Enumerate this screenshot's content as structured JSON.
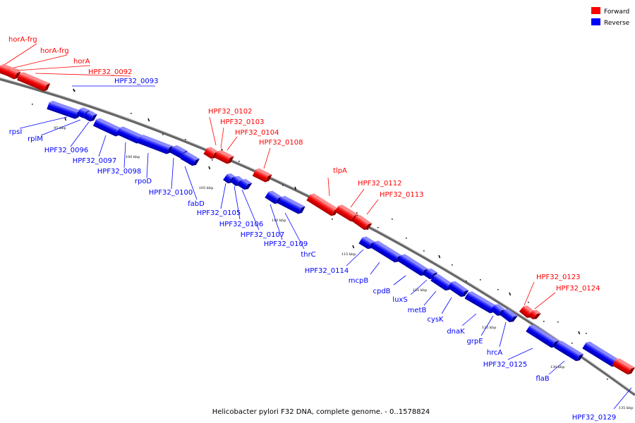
{
  "title": "Helicobacter pylori F32 DNA, complete genome. - 0..1578824",
  "colors": {
    "forward": "#ff0000",
    "reverse": "#0000ff",
    "backbone": "#888888"
  },
  "legend": [
    {
      "key": "forward",
      "label": "Forward"
    },
    {
      "key": "reverse",
      "label": "Reverse"
    }
  ],
  "scale_labels": [
    "95 kbp",
    "100 kbp",
    "105 kbp",
    "110 kbp",
    "115 kbp",
    "120 kbp",
    "125 kbp",
    "130 kbp",
    "135 kbp"
  ],
  "genes": [
    {
      "name": "horA-frg",
      "strand": "forward"
    },
    {
      "name": "horA-frg",
      "strand": "forward"
    },
    {
      "name": "horA",
      "strand": "forward"
    },
    {
      "name": "HPF32_0092",
      "strand": "forward"
    },
    {
      "name": "HPF32_0093",
      "strand": "reverse"
    },
    {
      "name": "rpsI",
      "strand": "reverse"
    },
    {
      "name": "rplM",
      "strand": "reverse"
    },
    {
      "name": "HPF32_0096",
      "strand": "reverse"
    },
    {
      "name": "HPF32_0097",
      "strand": "reverse"
    },
    {
      "name": "HPF32_0098",
      "strand": "reverse"
    },
    {
      "name": "rpoD",
      "strand": "reverse"
    },
    {
      "name": "HPF32_0100",
      "strand": "reverse"
    },
    {
      "name": "fabD",
      "strand": "reverse"
    },
    {
      "name": "HPF32_0102",
      "strand": "forward"
    },
    {
      "name": "HPF32_0103",
      "strand": "forward"
    },
    {
      "name": "HPF32_0104",
      "strand": "forward"
    },
    {
      "name": "HPF32_0108",
      "strand": "forward"
    },
    {
      "name": "HPF32_0105",
      "strand": "reverse"
    },
    {
      "name": "HPF32_0106",
      "strand": "reverse"
    },
    {
      "name": "HPF32_0107",
      "strand": "reverse"
    },
    {
      "name": "HPF32_0109",
      "strand": "reverse"
    },
    {
      "name": "thrC",
      "strand": "reverse"
    },
    {
      "name": "tlpA",
      "strand": "forward"
    },
    {
      "name": "HPF32_0112",
      "strand": "forward"
    },
    {
      "name": "HPF32_0113",
      "strand": "forward"
    },
    {
      "name": "HPF32_0114",
      "strand": "reverse"
    },
    {
      "name": "mcpB",
      "strand": "reverse"
    },
    {
      "name": "cpdB",
      "strand": "reverse"
    },
    {
      "name": "luxS",
      "strand": "reverse"
    },
    {
      "name": "metB",
      "strand": "reverse"
    },
    {
      "name": "cysK",
      "strand": "reverse"
    },
    {
      "name": "dnaK",
      "strand": "reverse"
    },
    {
      "name": "grpE",
      "strand": "reverse"
    },
    {
      "name": "hrcA",
      "strand": "reverse"
    },
    {
      "name": "HPF32_0125",
      "strand": "reverse"
    },
    {
      "name": "flaB",
      "strand": "reverse"
    },
    {
      "name": "HPF32_0123",
      "strand": "forward"
    },
    {
      "name": "HPF32_0124",
      "strand": "forward"
    },
    {
      "name": "HPF32_0129",
      "strand": "reverse"
    }
  ]
}
